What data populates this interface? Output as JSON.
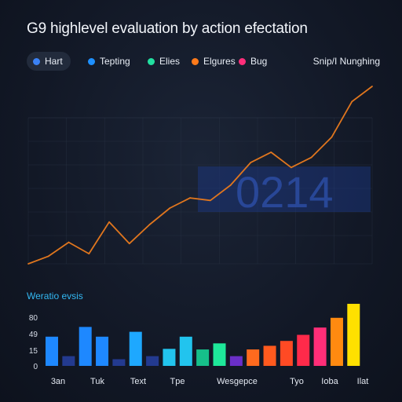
{
  "title": "G9 highlevel evaluation by action efectation",
  "legend": {
    "items": [
      {
        "label": "Hart",
        "color": "#3b82f6"
      },
      {
        "label": "Tepting",
        "color": "#1e90ff"
      },
      {
        "label": "Elies",
        "color": "#22e0a0"
      },
      {
        "label": "Elgures",
        "color": "#ff7a1a"
      },
      {
        "label": "Bug",
        "color": "#ff2e7a"
      }
    ],
    "right_label": "Snip/I Nunghing"
  },
  "chart_data": [
    {
      "type": "line",
      "big_label": "0214",
      "values": [
        0.0,
        0.06,
        0.17,
        0.08,
        0.33,
        0.16,
        0.31,
        0.44,
        0.52,
        0.5,
        0.62,
        0.8,
        0.88,
        0.76,
        0.84,
        1.0,
        1.28,
        1.4
      ],
      "color": "#e0761e"
    },
    {
      "type": "bar",
      "title": "Weratio evsis",
      "ytick_labels": [
        "0",
        "15",
        "49",
        "80"
      ],
      "y_max": 80,
      "xtick_labels": [
        "3an",
        "Tuk",
        "Text",
        "Tpe",
        "Wesgepce",
        "Tyo",
        "Ioba",
        "Ilat"
      ],
      "values": [
        48,
        16,
        64,
        48,
        11,
        56,
        16,
        28,
        48,
        27,
        37,
        16,
        27,
        33,
        41,
        51,
        63,
        79,
        102
      ],
      "colors": [
        "#1e88ff",
        "#233a8f",
        "#1e88ff",
        "#1e88ff",
        "#233a8f",
        "#1ea8ff",
        "#233a8f",
        "#22c4ee",
        "#22c4ee",
        "#16c08a",
        "#1ee89a",
        "#6a2fc8",
        "#ff6a1e",
        "#ff5a1e",
        "#ff4a24",
        "#ff2a4a",
        "#ff2e78",
        "#ff8a10",
        "#ffe000"
      ]
    }
  ]
}
